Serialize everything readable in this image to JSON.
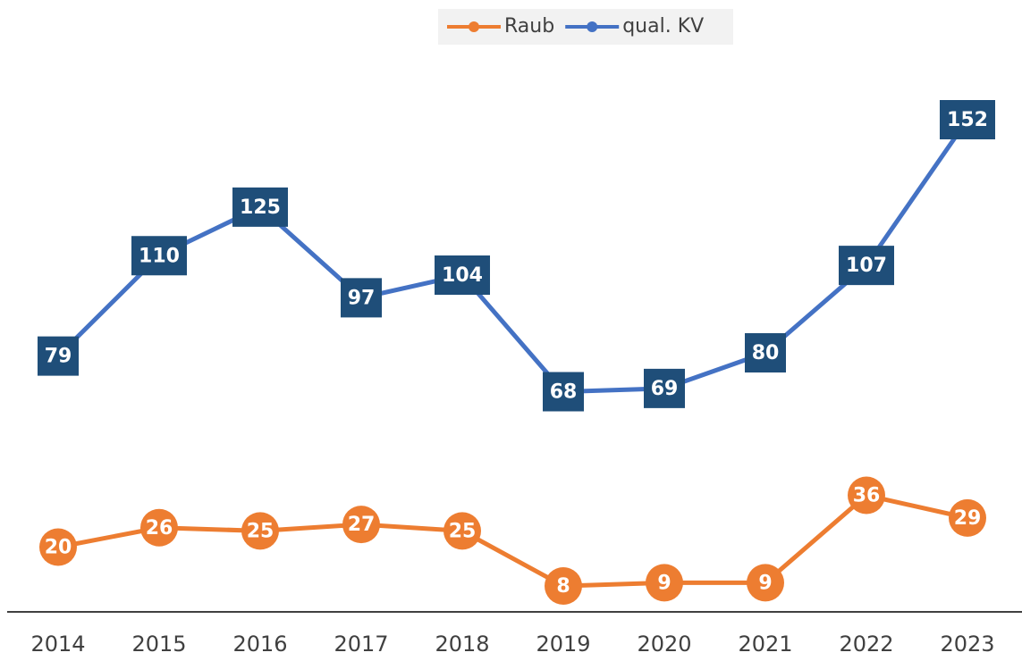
{
  "chart_data": {
    "type": "line",
    "categories": [
      "2014",
      "2015",
      "2016",
      "2017",
      "2018",
      "2019",
      "2020",
      "2021",
      "2022",
      "2023"
    ],
    "series": [
      {
        "name": "Raub",
        "color": "#ed7d31",
        "label_color": "#ed7d31",
        "values": [
          20,
          26,
          25,
          27,
          25,
          8,
          9,
          9,
          36,
          29
        ]
      },
      {
        "name": "qual. KV",
        "color": "#4472c4",
        "label_color": "#1f4e79",
        "values": [
          79,
          110,
          125,
          97,
          104,
          68,
          69,
          80,
          107,
          152
        ]
      }
    ],
    "ylim": [
      0,
      160
    ],
    "legend": "top"
  }
}
